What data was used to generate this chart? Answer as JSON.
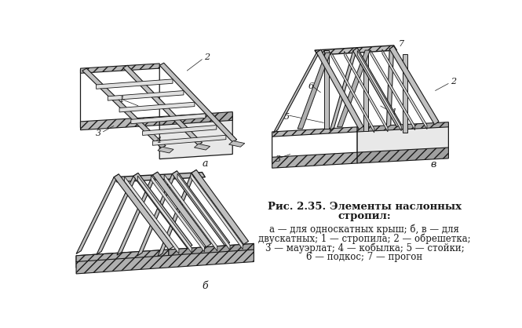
{
  "bg_color": "#ffffff",
  "line_color": "#1a1a1a",
  "title_line1": "Рис. 2.35. Элементы наслонных",
  "title_line2": "стропил:",
  "caption_line1": "а — для односкатных крыш; б, в — для",
  "caption_line2": "двускатных; 1 — стропила; 2 — обрешетка;",
  "caption_line3": "3 — мауэрлат; 4 — кобылка; 5 — стойки;",
  "caption_line4": "6 — подкос; 7 — прогон",
  "label_a": "а",
  "label_b": "б",
  "label_v": "в",
  "title_fontsize": 9.5,
  "caption_fontsize": 8.5,
  "label_fontsize": 9,
  "num_fontsize": 8
}
